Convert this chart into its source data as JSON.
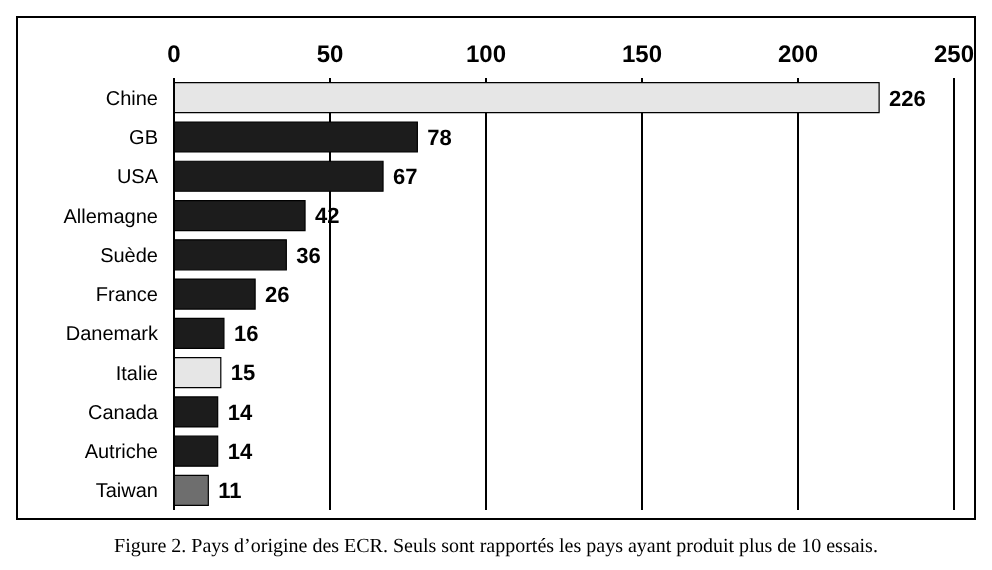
{
  "chart_data": {
    "type": "bar",
    "orientation": "horizontal",
    "categories": [
      "Chine",
      "GB",
      "USA",
      "Allemagne",
      "Suède",
      "France",
      "Danemark",
      "Italie",
      "Canada",
      "Autriche",
      "Taiwan"
    ],
    "values": [
      226,
      78,
      67,
      42,
      36,
      26,
      16,
      15,
      14,
      14,
      11
    ],
    "colors": [
      "#e6e6e6",
      "#1c1c1c",
      "#1c1c1c",
      "#1c1c1c",
      "#1c1c1c",
      "#1c1c1c",
      "#1c1c1c",
      "#e6e6e6",
      "#1c1c1c",
      "#1c1c1c",
      "#6e6e6e"
    ],
    "xlim": [
      0,
      250
    ],
    "xticks": [
      0,
      50,
      100,
      150,
      200,
      250
    ],
    "grid": "x",
    "data_labels": true,
    "annotations": [
      "Figure 2. Pays d’origine des ECR. Seuls sont rapportés les pays ayant produit plus de 10 essais."
    ]
  }
}
